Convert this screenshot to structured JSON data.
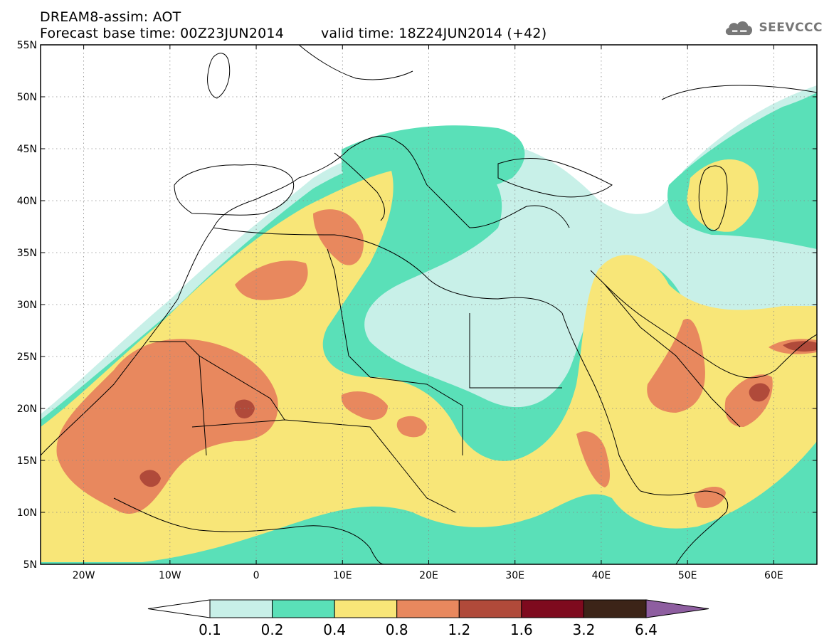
{
  "header": {
    "line1": "DREAM8-assim: AOT",
    "forecast_base": "Forecast base time: 00Z23JUN2014",
    "valid_time": "valid time: 18Z24JUN2014 (+42)"
  },
  "logo": {
    "text": "SEEVCCC",
    "icon": "cloud-icon"
  },
  "map": {
    "lon_range": [
      -25,
      65
    ],
    "lat_range": [
      5,
      55
    ],
    "lat_ticks": [
      "5N",
      "10N",
      "15N",
      "20N",
      "25N",
      "30N",
      "35N",
      "40N",
      "45N",
      "50N",
      "55N"
    ],
    "lon_ticks": [
      "20W",
      "10W",
      "0",
      "10E",
      "20E",
      "30E",
      "40E",
      "50E",
      "60E"
    ],
    "grid": "dotted"
  },
  "legend": {
    "labels": [
      "0.1",
      "0.2",
      "0.4",
      "0.8",
      "1.2",
      "1.6",
      "3.2",
      "6.4"
    ],
    "colors": [
      "#ffffff",
      "#c8f0e8",
      "#5ae0b8",
      "#f8e678",
      "#e8885e",
      "#b04a3a",
      "#7e0a1e",
      "#3c2418",
      "#8e5ea0"
    ]
  }
}
